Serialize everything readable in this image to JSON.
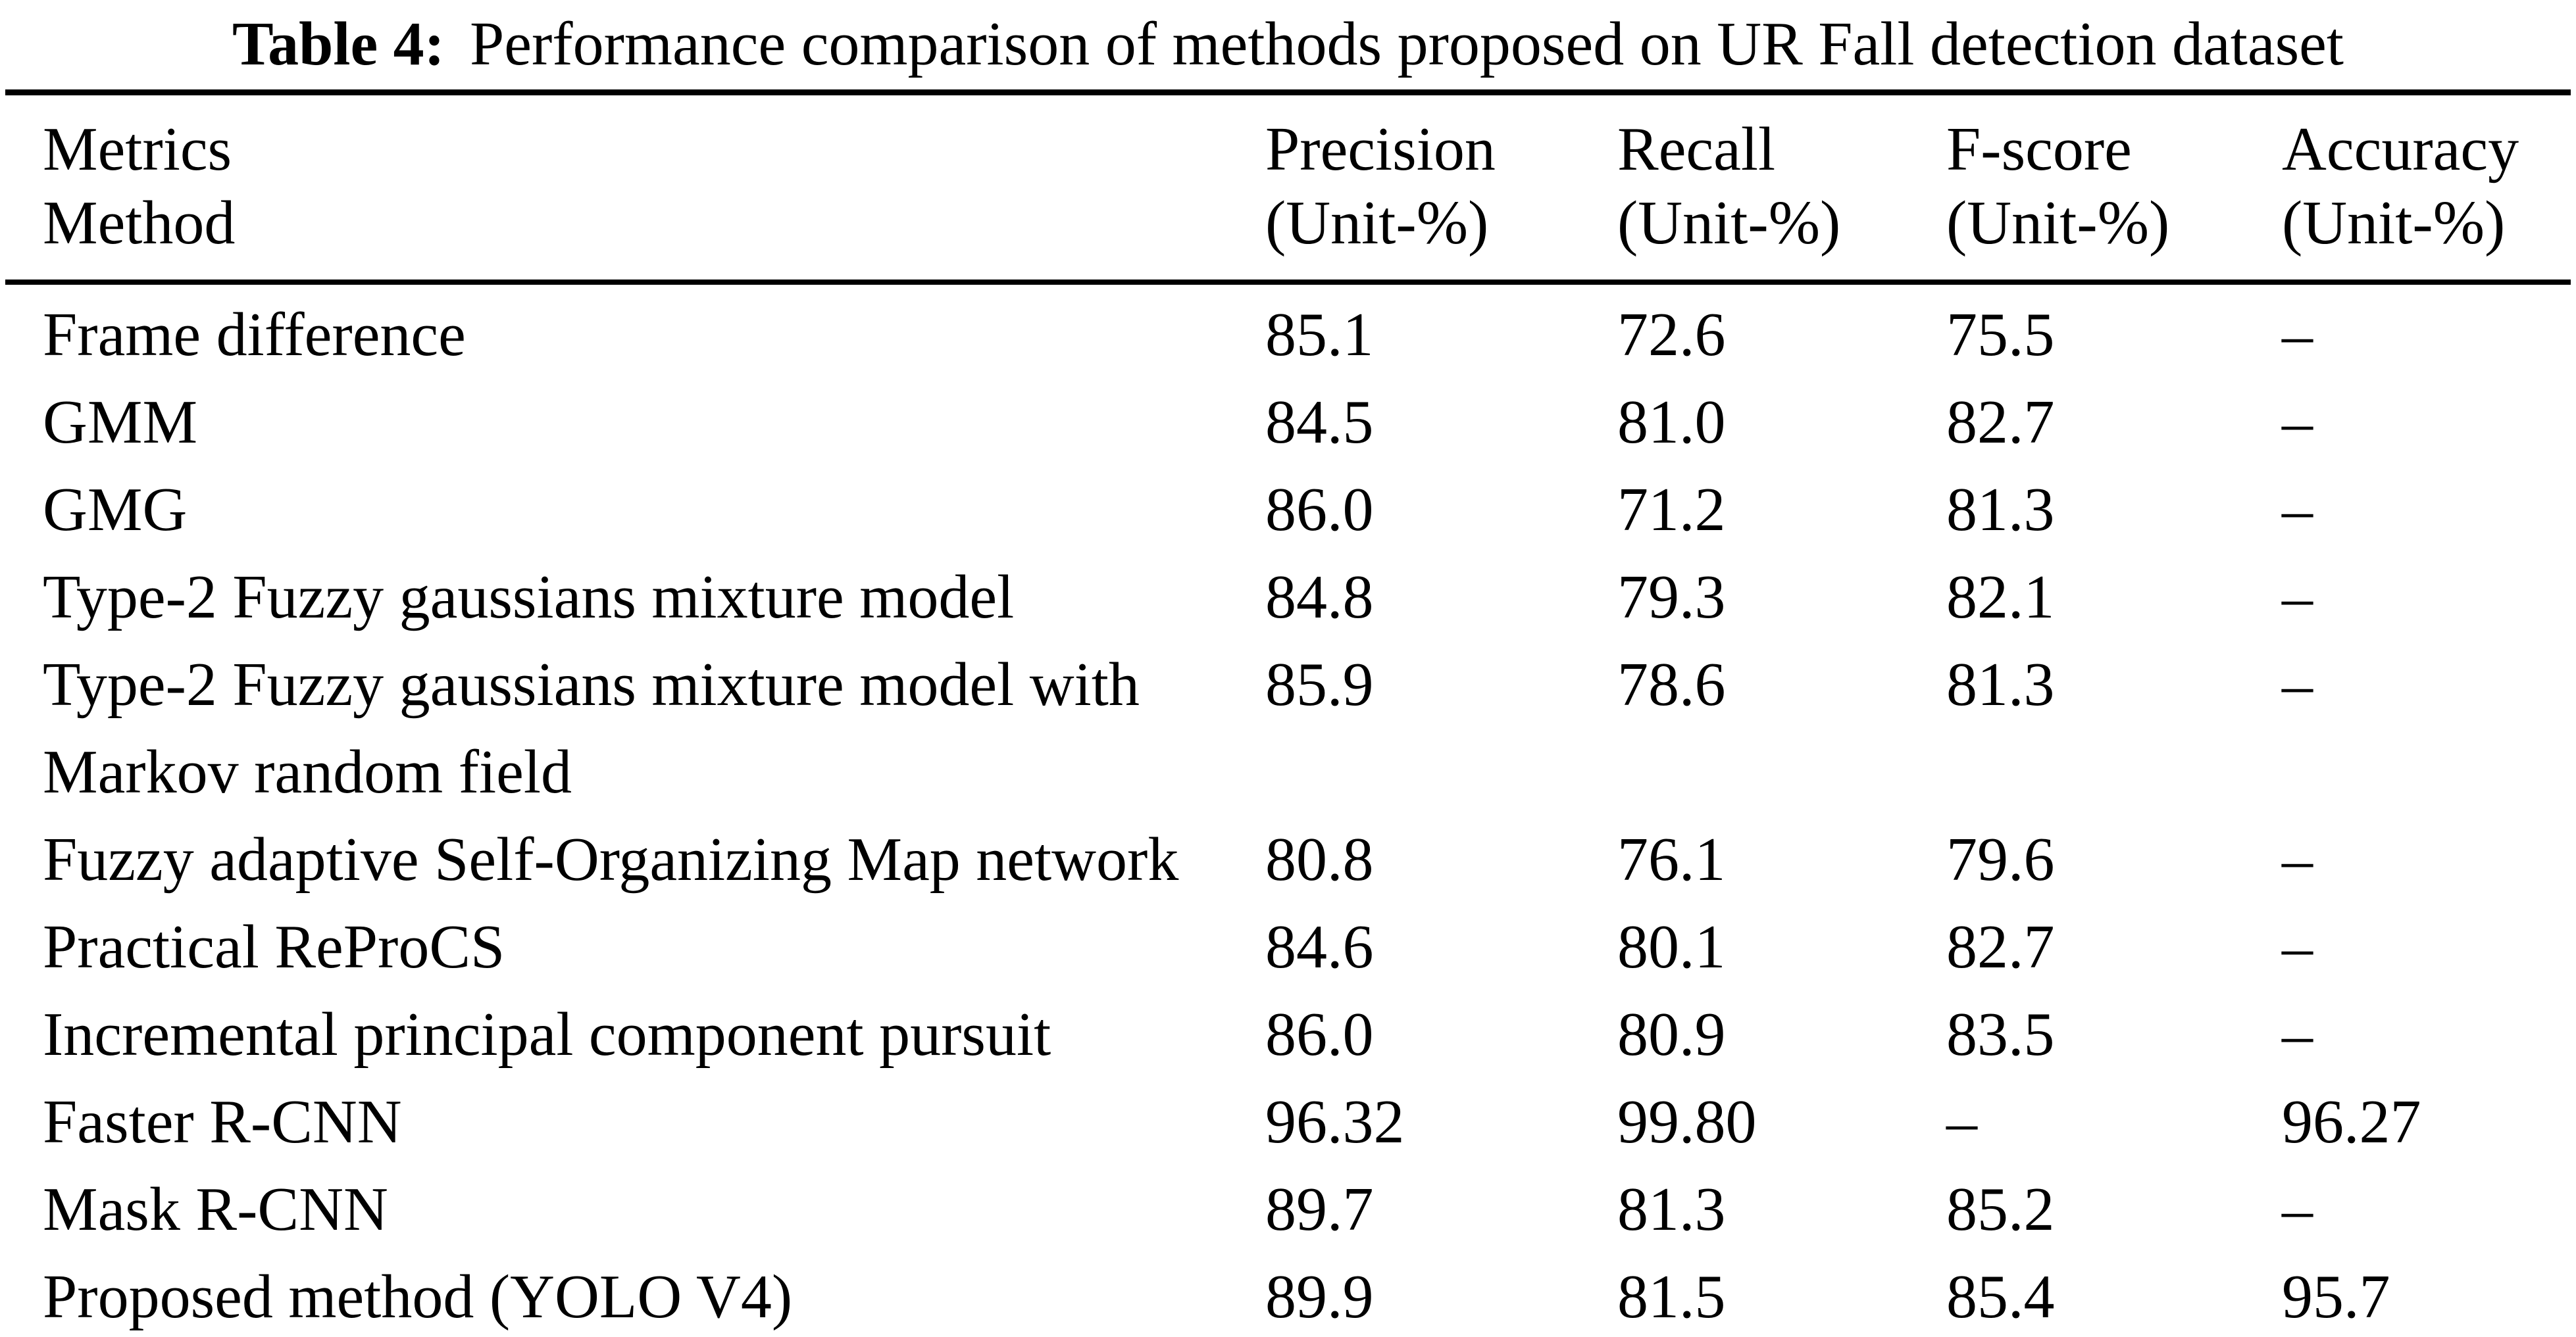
{
  "caption": {
    "label": "Table 4:",
    "text": "Performance comparison of methods proposed on UR Fall detection dataset"
  },
  "header": {
    "metrics_label": "Metrics",
    "method_label": "Method",
    "cols": [
      {
        "name": "Precision",
        "unit": "(Unit-%)"
      },
      {
        "name": "Recall",
        "unit": "(Unit-%)"
      },
      {
        "name": "F-score",
        "unit": "(Unit-%)"
      },
      {
        "name": "Accuracy",
        "unit": "(Unit-%)"
      }
    ]
  },
  "rows": [
    {
      "method": "Frame difference",
      "precision": "85.1",
      "recall": "72.6",
      "fscore": "75.5",
      "accuracy": "–"
    },
    {
      "method": "GMM",
      "precision": "84.5",
      "recall": "81.0",
      "fscore": "82.7",
      "accuracy": "–"
    },
    {
      "method": "GMG",
      "precision": "86.0",
      "recall": "71.2",
      "fscore": "81.3",
      "accuracy": "–"
    },
    {
      "method": "Type-2 Fuzzy gaussians mixture model",
      "precision": "84.8",
      "recall": "79.3",
      "fscore": "82.1",
      "accuracy": "–"
    },
    {
      "method": "Type-2 Fuzzy gaussians mixture model with Markov random field",
      "precision": "85.9",
      "recall": "78.6",
      "fscore": "81.3",
      "accuracy": "–"
    },
    {
      "method": "Fuzzy adaptive Self-Organizing Map network",
      "precision": "80.8",
      "recall": "76.1",
      "fscore": "79.6",
      "accuracy": "–"
    },
    {
      "method": "Practical ReProCS",
      "precision": "84.6",
      "recall": "80.1",
      "fscore": "82.7",
      "accuracy": "–"
    },
    {
      "method": "Incremental principal component pursuit",
      "precision": "86.0",
      "recall": "80.9",
      "fscore": "83.5",
      "accuracy": "–"
    },
    {
      "method": "Faster R-CNN",
      "precision": "96.32",
      "recall": "99.80",
      "fscore": "–",
      "accuracy": "96.27"
    },
    {
      "method": "Mask R-CNN",
      "precision": "89.7",
      "recall": "81.3",
      "fscore": "85.2",
      "accuracy": "–"
    },
    {
      "method": "Proposed method (YOLO V4)",
      "precision": "89.9",
      "recall": "81.5",
      "fscore": "85.4",
      "accuracy": "95.7"
    }
  ],
  "colors": {
    "text": "#000000",
    "background": "#ffffff",
    "rule": "#000000"
  },
  "chart_data": {
    "type": "table",
    "title": "Table 4: Performance comparison of methods proposed on UR Fall detection dataset",
    "columns": [
      "Method",
      "Precision (Unit-%)",
      "Recall (Unit-%)",
      "F-score (Unit-%)",
      "Accuracy (Unit-%)"
    ],
    "rows": [
      [
        "Frame difference",
        "85.1",
        "72.6",
        "75.5",
        null
      ],
      [
        "GMM",
        "84.5",
        "81.0",
        "82.7",
        null
      ],
      [
        "GMG",
        "86.0",
        "71.2",
        "81.3",
        null
      ],
      [
        "Type-2 Fuzzy gaussians mixture model",
        "84.8",
        "79.3",
        "82.1",
        null
      ],
      [
        "Type-2 Fuzzy gaussians mixture model with Markov random field",
        "85.9",
        "78.6",
        "81.3",
        null
      ],
      [
        "Fuzzy adaptive Self-Organizing Map network",
        "80.8",
        "76.1",
        "79.6",
        null
      ],
      [
        "Practical ReProCS",
        "84.6",
        "80.1",
        "82.7",
        null
      ],
      [
        "Incremental principal component pursuit",
        "86.0",
        "80.9",
        "83.5",
        null
      ],
      [
        "Faster R-CNN",
        "96.32",
        "99.80",
        null,
        "96.27"
      ],
      [
        "Mask R-CNN",
        "89.7",
        "81.3",
        "85.2",
        null
      ],
      [
        "Proposed method (YOLO V4)",
        "89.9",
        "81.5",
        "85.4",
        "95.7"
      ]
    ],
    "missing_value_symbol": "–"
  }
}
